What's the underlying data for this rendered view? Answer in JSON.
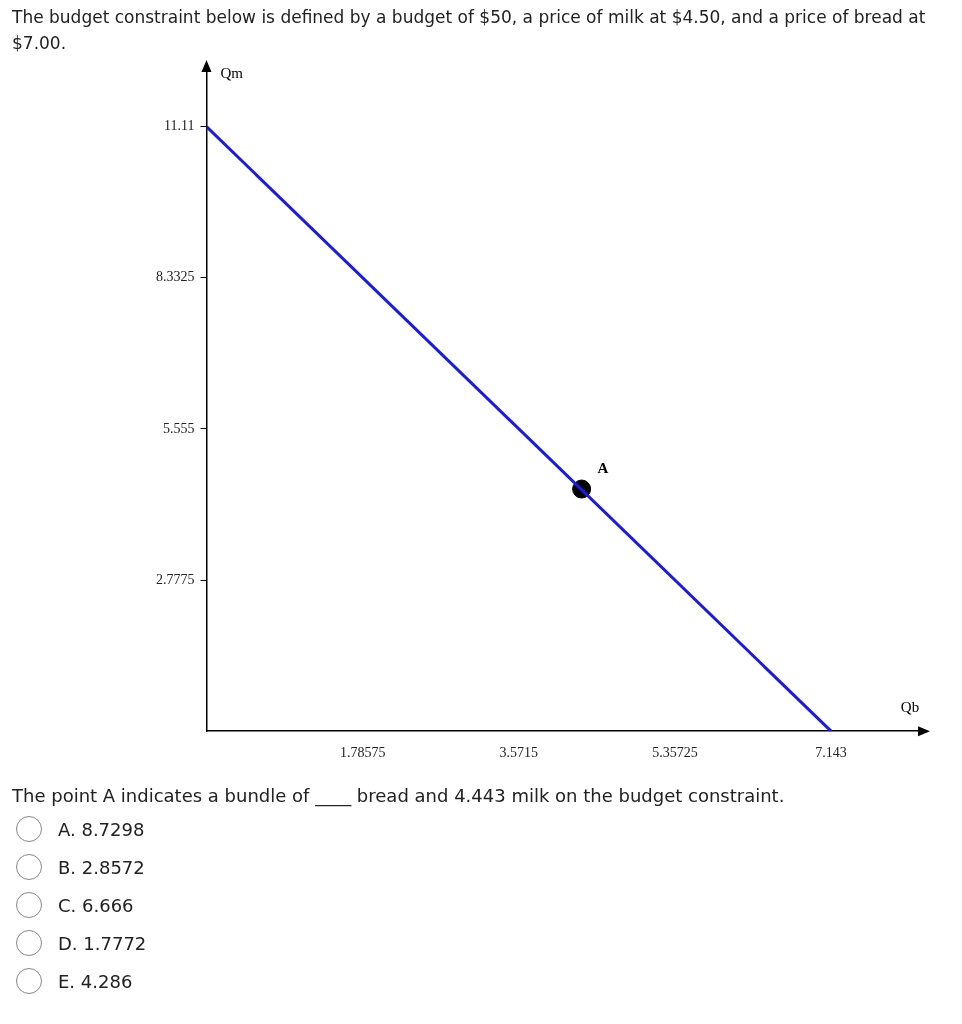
{
  "chart_data": {
    "type": "line",
    "title": "The budget constraint below is defined by a budget of $50, a price of milk at $4.50, and a price of bread at $7.00.",
    "xlabel": "Qb",
    "ylabel": "Qm",
    "xlim": [
      0,
      8.16
    ],
    "xticks": [
      1.78575,
      3.5715,
      5.35725,
      7.143
    ],
    "ylim": [
      0,
      12.15
    ],
    "yticks": [
      2.7775,
      5.555,
      8.3325,
      11.11
    ],
    "series": [
      {
        "color": "#1a1ae8",
        "x": [
          0,
          7.143
        ],
        "values": [
          11.11,
          0
        ]
      },
      {
        "type": "scatter",
        "color": "#000000",
        "marker": "circle",
        "x": [
          4.29
        ],
        "values": [
          4.45
        ]
      }
    ],
    "annotations": [
      {
        "text": "A",
        "x": 4.29,
        "y": 4.45
      },
      "The point A indicates a bundle of ____ bread and 4.443 milk on the budget constraint.",
      "A. 8.7298",
      "B. 2.8572",
      "C. 6.666",
      "D. 1.7772",
      "E. 4.286"
    ]
  }
}
